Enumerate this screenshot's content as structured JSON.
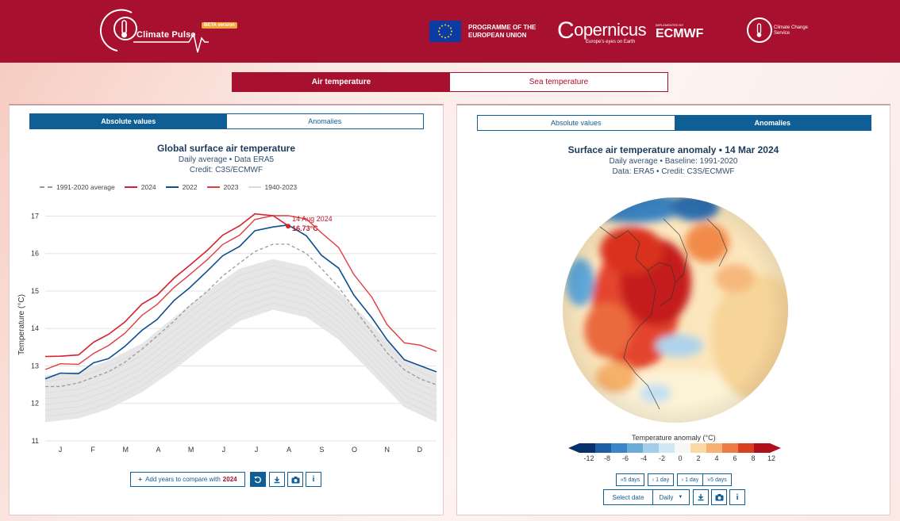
{
  "header": {
    "app_name": "Climate Pulse",
    "beta_badge": "BETA version",
    "eu_text": "PROGRAMME OF THE EUROPEAN UNION",
    "copernicus": "opernicus",
    "copernicus_c": "C",
    "copernicus_tagline": "Europe's eyes on Earth",
    "implemented_by": "IMPLEMENTED BY",
    "ecmwf": "ECMWF",
    "ccs": "Climate Change Service"
  },
  "top_tabs": [
    "Air temperature",
    "Sea temperature"
  ],
  "left_panel": {
    "tabs": [
      "Absolute values",
      "Anomalies"
    ],
    "title": "Global surface air temperature",
    "subtitle1": "Daily average • Data ERA5",
    "subtitle2": "Credit: C3S/ECMWF",
    "legend": [
      {
        "label": "1991-2020 average",
        "color": "#9a9a9a"
      },
      {
        "label": "2024",
        "color": "#d6202e"
      },
      {
        "label": "2022",
        "color": "#0c4f91"
      },
      {
        "label": "2023",
        "color": "#e23b3f"
      },
      {
        "label": "1940-2023",
        "color": "#d9d9d9"
      }
    ],
    "annotation_date": "14 Aug 2024",
    "annotation_value": "16.73°C",
    "add_years_label": "Add years to compare with",
    "add_years_year": "2024"
  },
  "chart_data": {
    "type": "line",
    "title": "Global surface air temperature",
    "ylabel": "Temperature (°C)",
    "ylim": [
      11,
      17.2
    ],
    "yticks": [
      11,
      12,
      13,
      14,
      15,
      16,
      17
    ],
    "x_ticks": [
      "J",
      "F",
      "M",
      "A",
      "M",
      "J",
      "J",
      "A",
      "S",
      "O",
      "N",
      "D"
    ],
    "series": [
      {
        "name": "1991-2020 average",
        "x": [
          1,
          15,
          32,
          46,
          60,
          75,
          91,
          105,
          121,
          135,
          152,
          166,
          182,
          196,
          213,
          227,
          244,
          258,
          274,
          288,
          305,
          319,
          335,
          350,
          365
        ],
        "values": [
          12.45,
          12.45,
          12.55,
          12.7,
          12.85,
          13.1,
          13.45,
          13.8,
          14.2,
          14.6,
          15.0,
          15.4,
          15.75,
          16.05,
          16.25,
          16.25,
          16.0,
          15.6,
          15.1,
          14.55,
          13.9,
          13.35,
          12.9,
          12.65,
          12.5
        ]
      },
      {
        "name": "2022",
        "x": [
          1,
          15,
          32,
          46,
          60,
          75,
          91,
          105,
          121,
          135,
          152,
          166,
          182,
          196,
          213,
          227,
          244,
          258,
          274,
          288,
          305,
          319,
          335,
          350,
          365
        ],
        "values": [
          12.7,
          12.75,
          12.85,
          13.05,
          13.2,
          13.55,
          13.9,
          14.3,
          14.7,
          15.1,
          15.55,
          15.9,
          16.25,
          16.55,
          16.75,
          16.75,
          16.45,
          16.0,
          15.55,
          14.95,
          14.25,
          13.7,
          13.2,
          12.95,
          12.9
        ]
      },
      {
        "name": "2023",
        "x": [
          1,
          15,
          32,
          46,
          60,
          75,
          91,
          105,
          121,
          135,
          152,
          166,
          182,
          196,
          213,
          227,
          244,
          258,
          274,
          288,
          305,
          319,
          335,
          350,
          365
        ],
        "values": [
          12.95,
          13.0,
          13.1,
          13.3,
          13.55,
          13.9,
          14.3,
          14.7,
          15.05,
          15.45,
          15.85,
          16.2,
          16.55,
          16.85,
          17.05,
          17.0,
          16.9,
          16.6,
          16.1,
          15.5,
          14.8,
          14.1,
          13.65,
          13.5,
          13.45
        ]
      },
      {
        "name": "2024",
        "x": [
          1,
          15,
          32,
          46,
          60,
          75,
          91,
          105,
          121,
          135,
          152,
          166,
          182,
          196,
          213,
          227
        ],
        "values": [
          13.3,
          13.2,
          13.35,
          13.6,
          13.85,
          14.2,
          14.6,
          14.95,
          15.3,
          15.7,
          16.1,
          16.45,
          16.8,
          17.0,
          17.05,
          16.73
        ]
      }
    ],
    "band_1940_2023": {
      "name": "1940-2023",
      "x": [
        1,
        32,
        60,
        91,
        121,
        152,
        182,
        213,
        244,
        274,
        305,
        335,
        365
      ],
      "low": [
        11.5,
        11.6,
        11.85,
        12.3,
        12.9,
        13.6,
        14.2,
        14.5,
        14.3,
        13.7,
        12.8,
        11.9,
        11.5
      ],
      "high": [
        12.75,
        12.85,
        13.15,
        13.6,
        14.3,
        15.0,
        15.6,
        15.85,
        15.65,
        15.0,
        14.1,
        13.2,
        12.8
      ]
    }
  },
  "right_panel": {
    "tabs": [
      "Absolute values",
      "Anomalies"
    ],
    "title": "Surface air temperature anomaly • 14 Mar 2024",
    "subtitle1": "Daily average • Baseline: 1991-2020",
    "subtitle2": "Data: ERA5 • Credit: C3S/ECMWF",
    "colorbar_label": "Temperature anomaly (°C)",
    "colorbar_ticks": [
      "-12",
      "-8",
      "-6",
      "-4",
      "-2",
      "0",
      "2",
      "4",
      "6",
      "8",
      "12"
    ],
    "nav_buttons": [
      "«5 days",
      "‹ 1 day",
      "› 1 day",
      "»5 days"
    ],
    "select_date": "Select date",
    "frequency": "Daily"
  },
  "colors": {
    "brand": "#a8102f",
    "blue": "#0f5e96"
  }
}
